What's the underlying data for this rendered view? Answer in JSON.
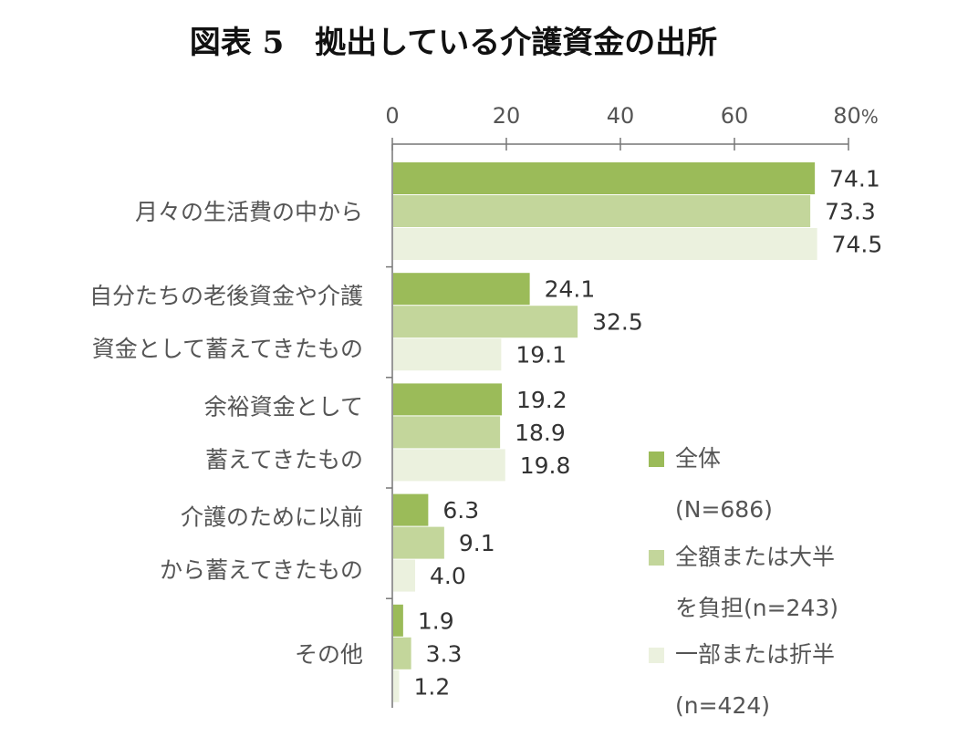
{
  "chart_data": {
    "type": "bar",
    "orientation": "horizontal",
    "title": "図表 5　拠出している介護資金の出所",
    "categories": [
      [
        "月々の生活費の中から"
      ],
      [
        "自分たちの老後資金や介護",
        "資金として蓄えてきたもの"
      ],
      [
        "余裕資金として",
        "蓄えてきたもの"
      ],
      [
        "介護のために以前",
        "から蓄えてきたもの"
      ],
      [
        "その他"
      ]
    ],
    "series": [
      {
        "name": "全体",
        "name_line2": "(N=686)",
        "color": "#9bbb59",
        "values": [
          74.1,
          24.1,
          19.2,
          6.3,
          1.9
        ],
        "labels": [
          "74.1",
          "24.1",
          "19.2",
          "6.3",
          "1.9"
        ]
      },
      {
        "name": "全額または大半",
        "name_line2": "を負担(n=243)",
        "color": "#c3d69b",
        "values": [
          73.3,
          32.5,
          18.9,
          9.1,
          3.3
        ],
        "labels": [
          "73.3",
          "32.5",
          "18.9",
          "9.1",
          "3.3"
        ]
      },
      {
        "name": "一部または折半",
        "name_line2": "(n=424)",
        "color": "#ebf1de",
        "values": [
          74.5,
          19.1,
          19.8,
          4.0,
          1.2
        ],
        "labels": [
          "74.5",
          "19.1",
          "19.8",
          "4.0",
          "1.2"
        ]
      }
    ],
    "xlim": [
      0,
      80
    ],
    "xticks": [
      0,
      20,
      40,
      60,
      80
    ],
    "xtick_labels": [
      "0",
      "20",
      "40",
      "60",
      "80"
    ],
    "unit": "%",
    "legend_position": "bottom-right",
    "grid": false
  }
}
